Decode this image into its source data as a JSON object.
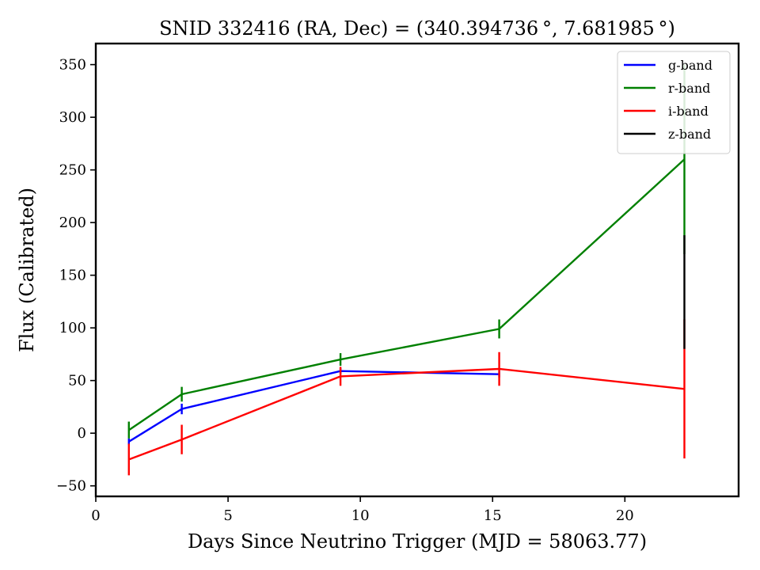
{
  "chart_data": {
    "type": "line",
    "title": "SNID 332416   (RA, Dec) = (340.394736 °, 7.681985 °)",
    "xlabel": "Days Since Neutrino Trigger (MJD = 58063.77)",
    "ylabel": "Flux (Calibrated)",
    "xlim": [
      0,
      24.3
    ],
    "ylim": [
      -60,
      370
    ],
    "xticks": [
      0,
      5,
      10,
      15,
      20
    ],
    "yticks": [
      -50,
      0,
      50,
      100,
      150,
      200,
      250,
      300,
      350
    ],
    "grid": false,
    "legend_position": "top-right",
    "series": [
      {
        "name": "g-band",
        "color": "#0000ff",
        "x": [
          1.25,
          3.25,
          9.25,
          15.25
        ],
        "y": [
          -8,
          23,
          59,
          56
        ],
        "yerr": [
          3,
          5,
          3,
          3
        ]
      },
      {
        "name": "r-band",
        "color": "#008000",
        "x": [
          1.25,
          3.25,
          9.25,
          15.25,
          22.25
        ],
        "y": [
          3,
          37,
          70,
          99,
          260
        ],
        "yerr": [
          8,
          7,
          6,
          9,
          90
        ]
      },
      {
        "name": "i-band",
        "color": "#ff0000",
        "x": [
          1.25,
          3.25,
          9.25,
          15.25,
          22.25
        ],
        "y": [
          -25,
          -6,
          54,
          61,
          42
        ],
        "yerr": [
          15,
          14,
          9,
          16,
          66
        ]
      },
      {
        "name": "z-band",
        "color": "#000000",
        "x": [
          22.25
        ],
        "y": [
          134
        ],
        "yerr": [
          54
        ]
      }
    ]
  }
}
